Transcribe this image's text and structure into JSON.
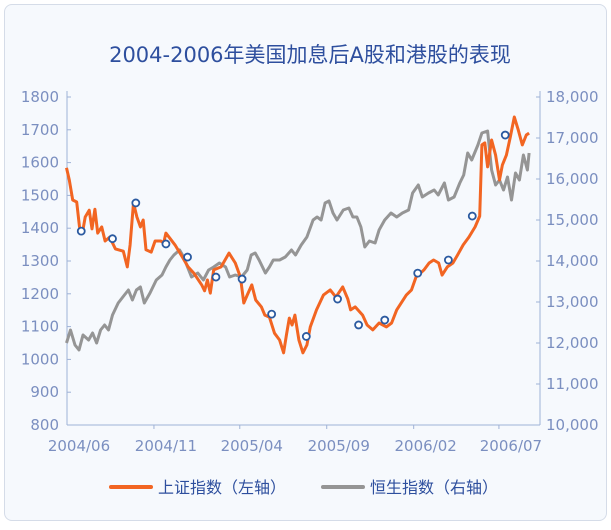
{
  "chart_data": {
    "type": "line",
    "title": "2004-2006年美国加息后A股和港股的表现",
    "xlabel": "",
    "ylabel": "",
    "x_tick_labels": [
      "2004/06",
      "2004/11",
      "2005/04",
      "2005/09",
      "2006/02",
      "2006/07"
    ],
    "y_left": {
      "ylim": [
        800,
        1800
      ],
      "ticks": [
        "800",
        "900",
        "1000",
        "1100",
        "1200",
        "1300",
        "1400",
        "1500",
        "1600",
        "1700",
        "1800"
      ]
    },
    "y_right": {
      "ylim": [
        10000,
        18000
      ],
      "ticks": [
        "10,000",
        "11,000",
        "12,000",
        "13,000",
        "14,000",
        "15,000",
        "16,000",
        "17,000",
        "18,000"
      ]
    },
    "grid": false,
    "legend_placement": "bottom",
    "colors": {
      "sse": "#f26522",
      "hsi": "#959595",
      "marker_stroke": "#2b5aa0",
      "title": "#2e4f9e",
      "axis_text": "#7b8fc0"
    },
    "series": [
      {
        "name": "上证指数（左轴）",
        "axis": "left",
        "x": [
          "2004-05-17",
          "2004-05-22",
          "2004-05-28",
          "2004-06-04",
          "2004-06-09",
          "2004-06-14",
          "2004-06-19",
          "2004-06-26",
          "2004-07-01",
          "2004-07-06",
          "2004-07-11",
          "2004-07-18",
          "2004-07-24",
          "2004-08-01",
          "2004-08-11",
          "2004-08-25",
          "2004-09-01",
          "2004-09-06",
          "2004-09-12",
          "2004-09-18",
          "2004-09-24",
          "2004-09-29",
          "2004-10-04",
          "2004-10-13",
          "2004-10-20",
          "2004-10-30",
          "2004-11-04",
          "2004-11-08",
          "2004-11-24",
          "2004-12-07",
          "2004-12-17",
          "2004-12-27",
          "2005-01-10",
          "2005-01-15",
          "2005-01-20",
          "2005-01-25",
          "2005-01-31",
          "2005-02-13",
          "2005-02-27",
          "2005-03-10",
          "2005-03-19",
          "2005-03-25",
          "2005-03-31",
          "2005-04-08",
          "2005-04-15",
          "2005-04-25",
          "2005-05-01",
          "2005-05-09",
          "2005-05-18",
          "2005-05-27",
          "2005-06-03",
          "2005-06-08",
          "2005-06-13",
          "2005-06-18",
          "2005-06-23",
          "2005-06-30",
          "2005-07-07",
          "2005-07-14",
          "2005-07-20",
          "2005-07-31",
          "2005-08-12",
          "2005-08-24",
          "2005-09-03",
          "2005-09-15",
          "2005-09-24",
          "2005-09-29",
          "2005-10-07",
          "2005-10-20",
          "2005-10-28",
          "2005-11-07",
          "2005-11-18",
          "2005-12-01",
          "2005-12-10",
          "2005-12-19",
          "2006-01-05",
          "2006-01-14",
          "2006-01-22",
          "2006-02-05",
          "2006-02-14",
          "2006-02-22",
          "2006-03-03",
          "2006-03-09",
          "2006-03-18",
          "2006-03-28",
          "2006-04-05",
          "2006-04-15",
          "2006-04-25",
          "2006-05-06",
          "2006-05-14",
          "2006-05-18",
          "2006-05-23",
          "2006-05-28",
          "2006-06-04",
          "2006-06-11",
          "2006-06-18",
          "2006-06-23",
          "2006-06-30",
          "2006-07-07",
          "2006-07-14",
          "2006-07-21",
          "2006-07-28",
          "2006-08-04",
          "2006-08-09"
        ],
        "values": [
          1584,
          1547,
          1486,
          1480,
          1404,
          1385,
          1434,
          1455,
          1398,
          1458,
          1385,
          1404,
          1361,
          1373,
          1337,
          1330,
          1282,
          1349,
          1477,
          1434,
          1404,
          1425,
          1334,
          1327,
          1361,
          1361,
          1355,
          1385,
          1349,
          1312,
          1282,
          1263,
          1227,
          1209,
          1242,
          1202,
          1273,
          1282,
          1324,
          1294,
          1251,
          1172,
          1196,
          1227,
          1181,
          1160,
          1135,
          1129,
          1080,
          1059,
          1020,
          1074,
          1126,
          1105,
          1135,
          1059,
          1020,
          1044,
          1099,
          1151,
          1196,
          1212,
          1190,
          1221,
          1184,
          1151,
          1160,
          1135,
          1105,
          1090,
          1111,
          1099,
          1111,
          1151,
          1196,
          1212,
          1251,
          1273,
          1294,
          1303,
          1294,
          1257,
          1282,
          1294,
          1318,
          1349,
          1373,
          1404,
          1437,
          1654,
          1660,
          1587,
          1669,
          1623,
          1547,
          1593,
          1623,
          1678,
          1739,
          1699,
          1654,
          1684,
          1690
        ]
      },
      {
        "name": "恒生指数（右轴）",
        "axis": "right",
        "x": [
          "2004-05-17",
          "2004-05-24",
          "2004-06-01",
          "2004-06-08",
          "2004-06-15",
          "2004-06-25",
          "2004-07-02",
          "2004-07-09",
          "2004-07-16",
          "2004-07-23",
          "2004-07-30",
          "2004-08-06",
          "2004-08-16",
          "2004-08-27",
          "2004-09-03",
          "2004-09-10",
          "2004-09-17",
          "2004-09-24",
          "2004-10-01",
          "2004-10-11",
          "2004-10-22",
          "2004-11-01",
          "2004-11-08",
          "2004-11-15",
          "2004-11-22",
          "2004-12-02",
          "2004-12-09",
          "2004-12-16",
          "2004-12-23",
          "2005-01-03",
          "2005-01-13",
          "2005-01-22",
          "2005-01-31",
          "2005-02-10",
          "2005-02-21",
          "2005-02-28",
          "2005-03-10",
          "2005-03-21",
          "2005-03-31",
          "2005-04-07",
          "2005-04-14",
          "2005-04-21",
          "2005-05-02",
          "2005-05-09",
          "2005-05-16",
          "2005-05-27",
          "2005-06-06",
          "2005-06-17",
          "2005-06-24",
          "2005-07-04",
          "2005-07-14",
          "2005-07-25",
          "2005-08-01",
          "2005-08-08",
          "2005-08-15",
          "2005-08-22",
          "2005-08-29",
          "2005-09-05",
          "2005-09-16",
          "2005-09-26",
          "2005-10-03",
          "2005-10-10",
          "2005-10-17",
          "2005-10-24",
          "2005-11-01",
          "2005-11-11",
          "2005-11-18",
          "2005-11-28",
          "2005-12-09",
          "2005-12-19",
          "2005-12-29",
          "2006-01-09",
          "2006-01-16",
          "2006-01-26",
          "2006-02-02",
          "2006-02-13",
          "2006-02-23",
          "2006-03-02",
          "2006-03-13",
          "2006-03-20",
          "2006-03-30",
          "2006-04-09",
          "2006-04-16",
          "2006-04-23",
          "2006-04-30",
          "2006-05-11",
          "2006-05-18",
          "2006-05-28",
          "2006-06-04",
          "2006-06-11",
          "2006-06-18",
          "2006-06-25",
          "2006-07-02",
          "2006-07-09",
          "2006-07-16",
          "2006-07-23",
          "2006-07-30",
          "2006-08-06",
          "2006-08-09"
        ],
        "values": [
          12000,
          12317,
          11951,
          11829,
          12195,
          12073,
          12244,
          12000,
          12317,
          12439,
          12317,
          12683,
          12976,
          13171,
          13293,
          13049,
          13293,
          13366,
          12976,
          13220,
          13537,
          13659,
          13854,
          14024,
          14146,
          14268,
          14098,
          13854,
          13610,
          13707,
          13537,
          13780,
          13854,
          13951,
          13854,
          13610,
          13659,
          13610,
          13780,
          14146,
          14195,
          14024,
          13707,
          13854,
          14024,
          14024,
          14098,
          14268,
          14146,
          14390,
          14585,
          15000,
          15073,
          15000,
          15415,
          15463,
          15171,
          15000,
          15244,
          15293,
          15073,
          15073,
          14829,
          14341,
          14488,
          14439,
          14756,
          15000,
          15171,
          15073,
          15171,
          15244,
          15659,
          15854,
          15561,
          15659,
          15732,
          15610,
          15902,
          15488,
          15561,
          15902,
          16098,
          16634,
          16463,
          16829,
          17122,
          17171,
          16220,
          15854,
          15976,
          15732,
          16049,
          15488,
          16146,
          15976,
          16585,
          16220,
          16634
        ]
      }
    ],
    "markers": {
      "series": "上证指数（左轴）",
      "x": [
        "2004-06-12",
        "2004-08-06",
        "2004-09-16",
        "2004-11-08",
        "2004-12-16",
        "2005-02-04",
        "2005-03-22",
        "2005-05-13",
        "2005-07-13",
        "2005-09-06",
        "2005-10-13",
        "2005-11-28",
        "2006-01-25",
        "2006-03-20",
        "2006-05-01",
        "2006-06-28"
      ],
      "values": [
        1391,
        1368,
        1477,
        1352,
        1312,
        1251,
        1245,
        1138,
        1070,
        1184,
        1105,
        1120,
        1263,
        1303,
        1437,
        1684
      ]
    }
  }
}
